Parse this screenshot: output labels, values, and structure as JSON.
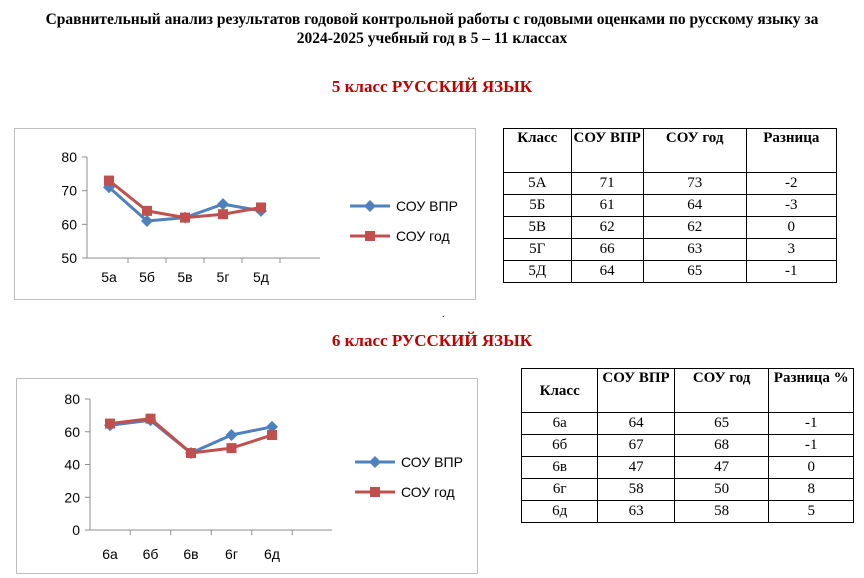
{
  "document": {
    "title": "Сравнительный анализ результатов годовой контрольной работы с годовыми оценками по русскому языку за 2024-2025 учебный год в 5 – 11 классах"
  },
  "sections": [
    {
      "heading": "5 класс РУССКИЙ ЯЗЫК",
      "table": {
        "headers": [
          "Класс",
          "СОУ ВПР",
          "СОУ год",
          "Разница"
        ],
        "rows": [
          [
            "5А",
            "71",
            "73",
            "-2"
          ],
          [
            "5Б",
            "61",
            "64",
            "-3"
          ],
          [
            "5В",
            "62",
            "62",
            "0"
          ],
          [
            "5Г",
            "66",
            "63",
            "3"
          ],
          [
            "5Д",
            "64",
            "65",
            "-1"
          ]
        ]
      }
    },
    {
      "heading": "6 класс РУССКИЙ ЯЗЫК",
      "table": {
        "headers": [
          "Класс",
          "СОУ ВПР",
          "СОУ год",
          "Разница %"
        ],
        "rows": [
          [
            "6а",
            "64",
            "65",
            "-1"
          ],
          [
            "6б",
            "67",
            "68",
            "-1"
          ],
          [
            "6в",
            "47",
            "47",
            "0"
          ],
          [
            "6г",
            "58",
            "50",
            "8"
          ],
          [
            "6д",
            "63",
            "58",
            "5"
          ]
        ]
      }
    }
  ],
  "dot_mark": ".",
  "chart_data": [
    {
      "type": "line",
      "categories": [
        "5а",
        "5б",
        "5в",
        "5г",
        "5д"
      ],
      "ylim": [
        50,
        80
      ],
      "yticks": [
        50,
        60,
        70,
        80
      ],
      "grid": false,
      "legend_position": "right",
      "series": [
        {
          "name": "СОУ ВПР",
          "color": "#4f81bd",
          "marker": "diamond",
          "values": [
            71,
            61,
            62,
            66,
            64
          ]
        },
        {
          "name": "СОУ год",
          "color": "#c0504d",
          "marker": "square",
          "values": [
            73,
            64,
            62,
            63,
            65
          ]
        }
      ]
    },
    {
      "type": "line",
      "categories": [
        "6а",
        "6б",
        "6в",
        "6г",
        "6д"
      ],
      "ylim": [
        0,
        80
      ],
      "yticks": [
        0,
        20,
        40,
        60,
        80
      ],
      "grid": false,
      "legend_position": "right",
      "series": [
        {
          "name": "СОУ ВПР",
          "color": "#4f81bd",
          "marker": "diamond",
          "values": [
            64,
            67,
            47,
            58,
            63
          ]
        },
        {
          "name": "СОУ год",
          "color": "#c0504d",
          "marker": "square",
          "values": [
            65,
            68,
            47,
            50,
            58
          ]
        }
      ]
    }
  ]
}
